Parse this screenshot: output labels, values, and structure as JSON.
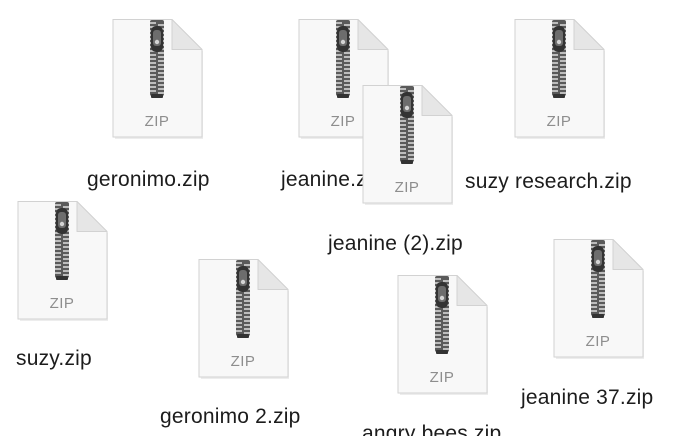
{
  "desktop": {
    "files": [
      {
        "name": "geronimo.zip",
        "icon": "zip-file-icon",
        "type_label": "ZIP"
      },
      {
        "name": "jeanine.zip",
        "icon": "zip-file-icon",
        "type_label": "ZIP"
      },
      {
        "name": "suzy research.zip",
        "icon": "zip-file-icon",
        "type_label": "ZIP"
      },
      {
        "name": "jeanine (2).zip",
        "icon": "zip-file-icon",
        "type_label": "ZIP"
      },
      {
        "name": "suzy.zip",
        "icon": "zip-file-icon",
        "type_label": "ZIP"
      },
      {
        "name": "geronimo 2.zip",
        "icon": "zip-file-icon",
        "type_label": "ZIP"
      },
      {
        "name": "angry bees.zip",
        "icon": "zip-file-icon",
        "type_label": "ZIP"
      },
      {
        "name": "jeanine 37.zip",
        "icon": "zip-file-icon",
        "type_label": "ZIP"
      }
    ]
  },
  "colors": {
    "page_fill": "#f8f8f8",
    "page_stroke": "#d2d2d2",
    "fold_fill": "#e6e6e6",
    "zipper_dark": "#333333",
    "zip_text": "#8e8e8e",
    "label_text": "#1c1c1c"
  }
}
